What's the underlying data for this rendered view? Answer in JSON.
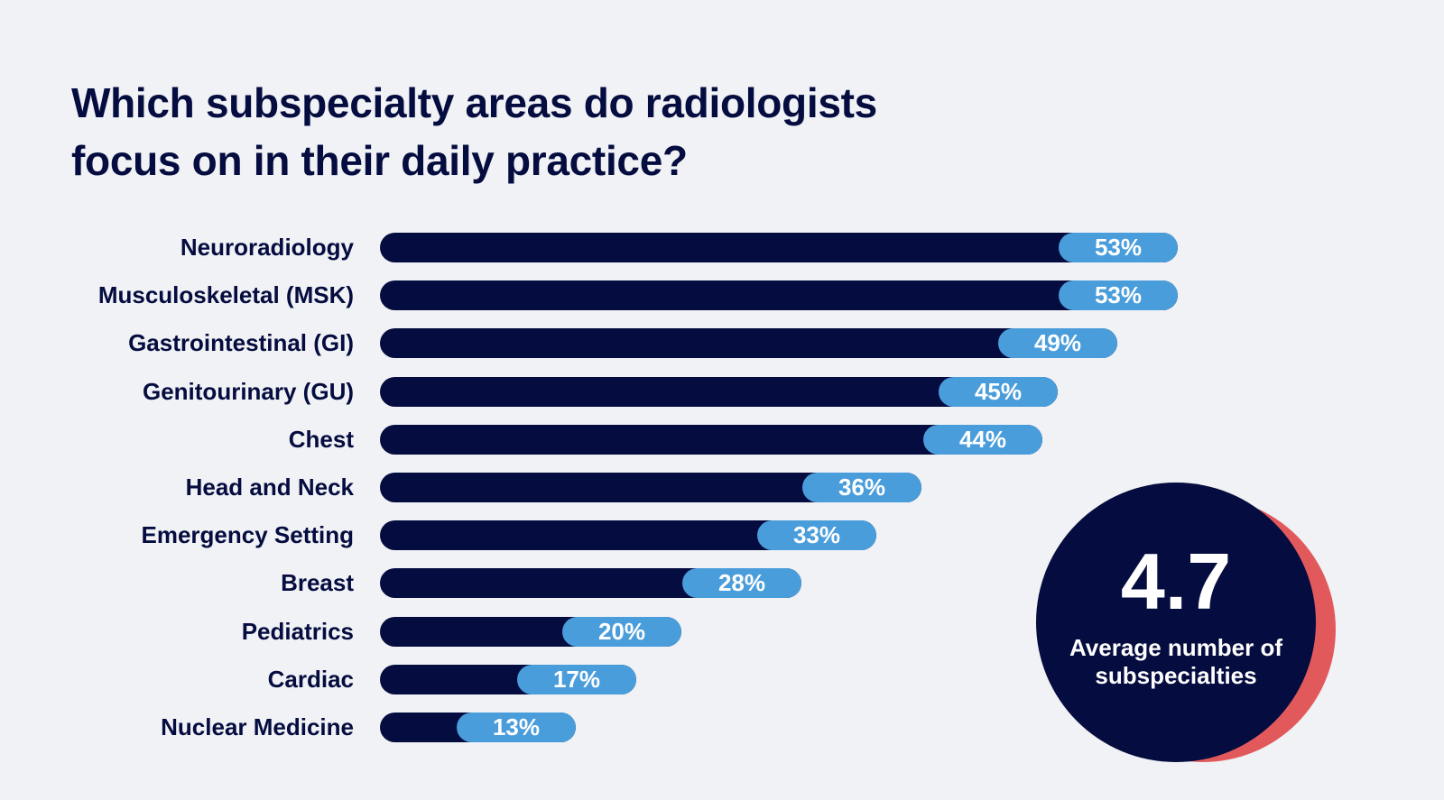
{
  "title": "Which subspecialty areas do radiologists focus on in their daily practice?",
  "colors": {
    "background": "#f0f2f5",
    "bar": "#050c3f",
    "pill": "#4a9ddb",
    "accent_red": "#e2595c",
    "text": "#050c3f"
  },
  "chart_data": {
    "type": "bar",
    "orientation": "horizontal",
    "title": "Which subspecialty areas do radiologists focus on in their daily practice?",
    "categories": [
      "Neuroradiology",
      "Musculoskeletal (MSK)",
      "Gastrointestinal (GI)",
      "Genitourinary (GU)",
      "Chest",
      "Head and Neck",
      "Emergency Setting",
      "Breast",
      "Pediatrics",
      "Cardiac",
      "Nuclear Medicine"
    ],
    "values": [
      53,
      53,
      49,
      45,
      44,
      36,
      33,
      28,
      20,
      17,
      13
    ],
    "data_labels": [
      "53%",
      "53%",
      "49%",
      "45%",
      "44%",
      "36%",
      "33%",
      "28%",
      "20%",
      "17%",
      "13%"
    ],
    "unit": "%",
    "xlim": [
      0,
      100
    ],
    "grid": false,
    "legend": "none"
  },
  "callout": {
    "value": "4.7",
    "caption": "Average number of subspecialties"
  }
}
